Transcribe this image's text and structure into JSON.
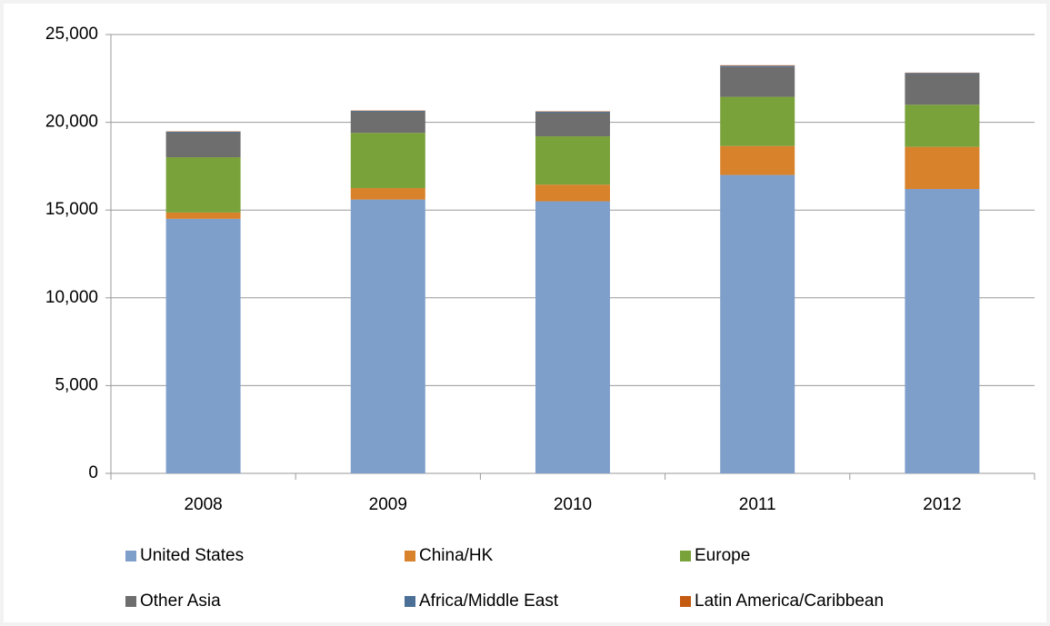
{
  "chart_data": {
    "type": "stacked_bar",
    "categories": [
      "2008",
      "2009",
      "2010",
      "2011",
      "2012"
    ],
    "series": [
      {
        "name": "United States",
        "color": "#7f9fcb",
        "values": [
          14500,
          15600,
          15500,
          17000,
          16200
        ]
      },
      {
        "name": "China/HK",
        "color": "#d8822b",
        "values": [
          360,
          650,
          950,
          1650,
          2400
        ]
      },
      {
        "name": "Europe",
        "color": "#7aa23a",
        "values": [
          3150,
          3150,
          2750,
          2800,
          2400
        ]
      },
      {
        "name": "Other Asia",
        "color": "#6e6e6e",
        "values": [
          1400,
          1200,
          1350,
          1700,
          1750
        ]
      },
      {
        "name": "Africa/Middle East",
        "color": "#4b6f96",
        "values": [
          50,
          50,
          60,
          70,
          60
        ]
      },
      {
        "name": "Latin America/Caribbean",
        "color": "#c55a11",
        "values": [
          20,
          20,
          20,
          30,
          20
        ]
      }
    ],
    "ylim": [
      0,
      25000
    ],
    "yticks": [
      0,
      {
        "value": 5000,
        "label": "5,000"
      },
      {
        "value": 10000,
        "label": "10,000"
      },
      {
        "value": 15000,
        "label": "15,000"
      },
      {
        "value": 20000,
        "label": "20,000"
      },
      {
        "value": 25000,
        "label": "25,000"
      }
    ],
    "grid": true,
    "legend": "bottom"
  }
}
